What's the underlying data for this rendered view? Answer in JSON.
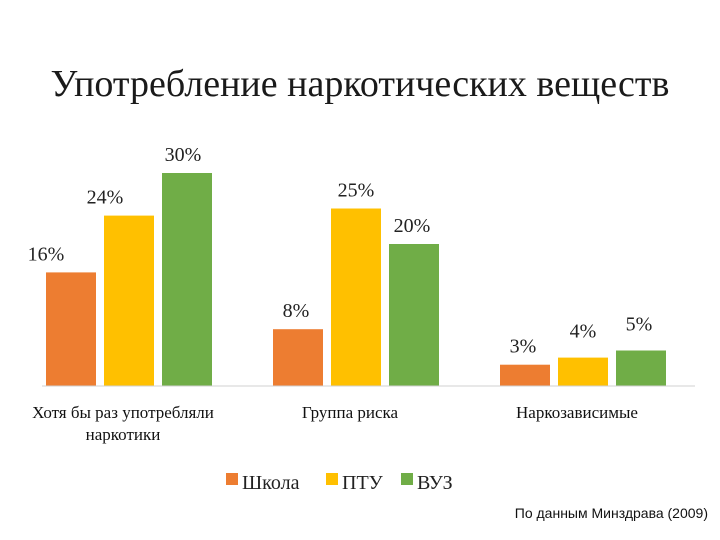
{
  "chart_data": {
    "type": "bar",
    "title": "Употребление наркотических веществ",
    "categories": [
      "Хотя бы раз употребляли наркотики",
      "Группа риска",
      "Наркозависимые"
    ],
    "category_lines": [
      [
        "Хотя бы раз употребляли",
        "наркотики"
      ],
      [
        "Группа риска"
      ],
      [
        "Наркозависимые"
      ]
    ],
    "series": [
      {
        "name": "Школа",
        "color": "#ED7D31",
        "values": [
          16,
          8,
          3
        ],
        "labels": [
          "16%",
          "8%",
          "3%"
        ]
      },
      {
        "name": "ПТУ",
        "color": "#FFC000",
        "values": [
          24,
          25,
          4
        ],
        "labels": [
          "24%",
          "25%",
          "4%"
        ]
      },
      {
        "name": "ВУЗ",
        "color": "#70AD47",
        "values": [
          30,
          20,
          5
        ],
        "labels": [
          "30%",
          "20%",
          "5%"
        ]
      }
    ],
    "unit": "%",
    "ylim": [
      0,
      30
    ],
    "grid": false,
    "legend_position": "bottom"
  },
  "source_note": "По данным Минздрава (2009)"
}
